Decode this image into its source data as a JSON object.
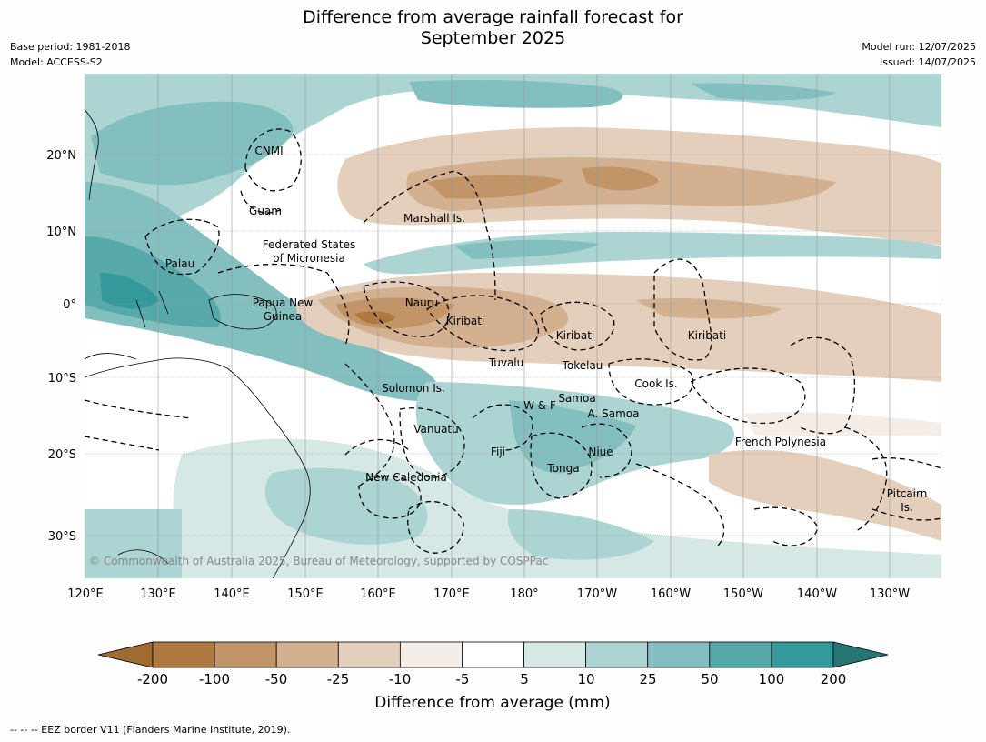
{
  "header": {
    "title_line1": "Difference from average rainfall forecast for",
    "title_line2": "September 2025",
    "base_period": "Base period: 1981-2018",
    "model": "Model: ACCESS-S2",
    "model_run": "Model run: 12/07/2025",
    "issued": "Issued: 14/07/2025"
  },
  "map": {
    "lon_labels": [
      "120°E",
      "130°E",
      "140°E",
      "150°E",
      "160°E",
      "170°E",
      "180°",
      "170°W",
      "160°W",
      "150°W",
      "140°W",
      "130°W"
    ],
    "lat_labels": [
      "20°N",
      "10°N",
      "0°",
      "10°S",
      "20°S",
      "30°S"
    ],
    "places": [
      {
        "name": "CNMI"
      },
      {
        "name": "Guam"
      },
      {
        "name": "Marshall Is."
      },
      {
        "name": "Federated States"
      },
      {
        "name": "of Micronesia"
      },
      {
        "name": "Palau"
      },
      {
        "name": "Nauru"
      },
      {
        "name": "Papua New"
      },
      {
        "name": "Guinea"
      },
      {
        "name": "Kiribati"
      },
      {
        "name": "Kiribati"
      },
      {
        "name": "Kiribati"
      },
      {
        "name": "Tuvalu"
      },
      {
        "name": "Tokelau"
      },
      {
        "name": "Cook Is."
      },
      {
        "name": "Solomon Is."
      },
      {
        "name": "W & F"
      },
      {
        "name": "Samoa"
      },
      {
        "name": "A. Samoa"
      },
      {
        "name": "Vanuatu"
      },
      {
        "name": "Fiji"
      },
      {
        "name": "Niue"
      },
      {
        "name": "French Polynesia"
      },
      {
        "name": "Tonga"
      },
      {
        "name": "New Caledonia"
      },
      {
        "name": "Pitcairn"
      },
      {
        "name": "Is."
      }
    ],
    "copyright": "© Commonwealth of Australia 2025, Bureau of Meteorology, supported by COSPPac"
  },
  "colorbar": {
    "labels": [
      "-200",
      "-100",
      "-50",
      "-25",
      "-10",
      "-5",
      "5",
      "10",
      "25",
      "50",
      "100",
      "200"
    ],
    "colors": [
      "#a06a33",
      "#ae7840",
      "#c29568",
      "#d2b090",
      "#e4cfbd",
      "#f5ede8",
      "#ffffff",
      "#d5e8e6",
      "#acd4d2",
      "#84bfbf",
      "#56a9a8",
      "#34999a",
      "#257675"
    ],
    "title": "Difference from average (mm)"
  },
  "footnote": "--  --  -- EEZ border V11 (Flanders Marine Institute, 2019)."
}
